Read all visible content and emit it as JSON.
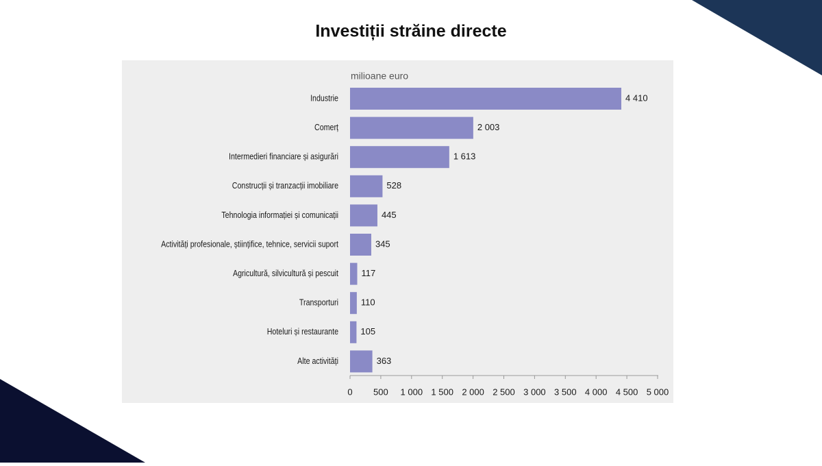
{
  "chart_data": {
    "type": "barh",
    "title": "Investiții străine directe",
    "xlabel": "milioane euro",
    "categories": [
      "Industrie",
      "Comerț",
      "Intermedieri financiare și asigurări",
      "Construcții și tranzacții imobiliare",
      "Tehnologia informației și comunicații",
      "Activități profesionale, științifice, tehnice, servicii suport",
      "Agricultură, silvicultură și pescuit",
      "Transporturi",
      "Hoteluri și restaurante",
      "Alte activități"
    ],
    "values": [
      4410,
      2003,
      1613,
      528,
      445,
      345,
      117,
      110,
      105,
      363
    ],
    "value_labels": [
      "4 410",
      "2 003",
      "1 613",
      "528",
      "445",
      "345",
      "117",
      "110",
      "105",
      "363"
    ],
    "color": "#8a8ac6",
    "xlim": [
      0,
      5000
    ],
    "xticks": [
      0,
      500,
      {
        "value": 1000,
        "label": "1 000"
      },
      {
        "value": 1500,
        "label": "1 500"
      },
      {
        "value": 2000,
        "label": "2 000"
      },
      {
        "value": 2500,
        "label": "2 500"
      },
      {
        "value": 3000,
        "label": "3 000"
      },
      {
        "value": 3500,
        "label": "3 500"
      },
      {
        "value": 4000,
        "label": "4 000"
      },
      {
        "value": 4500,
        "label": "4 500"
      },
      {
        "value": 5000,
        "label": "5 000"
      }
    ],
    "grid": false
  }
}
